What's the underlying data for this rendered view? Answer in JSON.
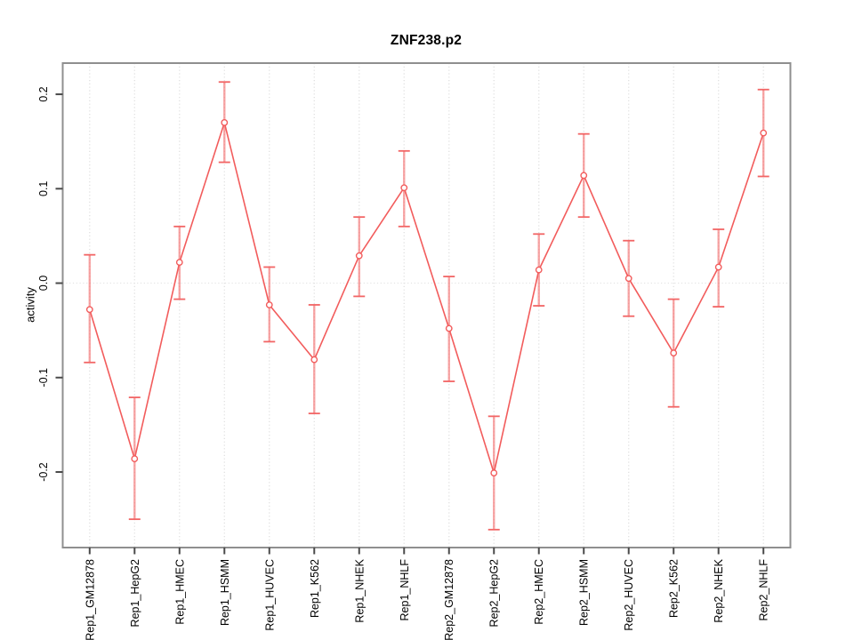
{
  "title": "ZNF238.p2",
  "chart_data": {
    "type": "line",
    "title": "ZNF238.p2",
    "xlabel": "",
    "ylabel": "activity",
    "legend": null,
    "grid": "dotted vertical gridline at every category; dotted horizontal line at y=0",
    "categories": [
      "Rep1_GM12878",
      "Rep1_HepG2",
      "Rep1_HMEC",
      "Rep1_HSMM",
      "Rep1_HUVEC",
      "Rep1_K562",
      "Rep1_NHEK",
      "Rep1_NHLF",
      "Rep2_GM12878",
      "Rep2_HepG2",
      "Rep2_HMEC",
      "Rep2_HSMM",
      "Rep2_HUVEC",
      "Rep2_K562",
      "Rep2_NHEK",
      "Rep2_NHLF"
    ],
    "series": [
      {
        "name": "activity",
        "values": [
          -0.028,
          -0.186,
          0.022,
          0.17,
          -0.023,
          -0.081,
          0.029,
          0.101,
          -0.048,
          -0.201,
          0.014,
          0.114,
          0.005,
          -0.074,
          0.017,
          0.159
        ],
        "upper": [
          0.03,
          -0.121,
          0.06,
          0.213,
          0.017,
          -0.023,
          0.07,
          0.14,
          0.007,
          -0.141,
          0.052,
          0.158,
          0.045,
          -0.017,
          0.057,
          0.205
        ],
        "lower": [
          -0.084,
          -0.25,
          -0.017,
          0.128,
          -0.062,
          -0.138,
          -0.014,
          0.06,
          -0.104,
          -0.261,
          -0.024,
          0.07,
          -0.035,
          -0.131,
          -0.025,
          0.113
        ]
      }
    ],
    "yticks": [
      {
        "v": -0.2,
        "label": "-0.2"
      },
      {
        "v": -0.1,
        "label": "-0.1"
      },
      {
        "v": 0.0,
        "label": "0.0"
      },
      {
        "v": 0.1,
        "label": "0.1"
      },
      {
        "v": 0.2,
        "label": "0.2"
      }
    ],
    "ylim": [
      -0.28,
      0.233
    ],
    "xlim": [
      0.4,
      16.6
    ],
    "colors": {
      "series": "#f25c5c",
      "point_fill": "#ffffff",
      "errorbar": "#f26565",
      "errorbar_stem": "rgba(243,110,110,0.62)",
      "gridline": "#e0e0e0",
      "zero_line": "#e4e4e4",
      "box": "#8f8f8f",
      "tick": "#4a4a4a",
      "text": "#000000"
    }
  }
}
